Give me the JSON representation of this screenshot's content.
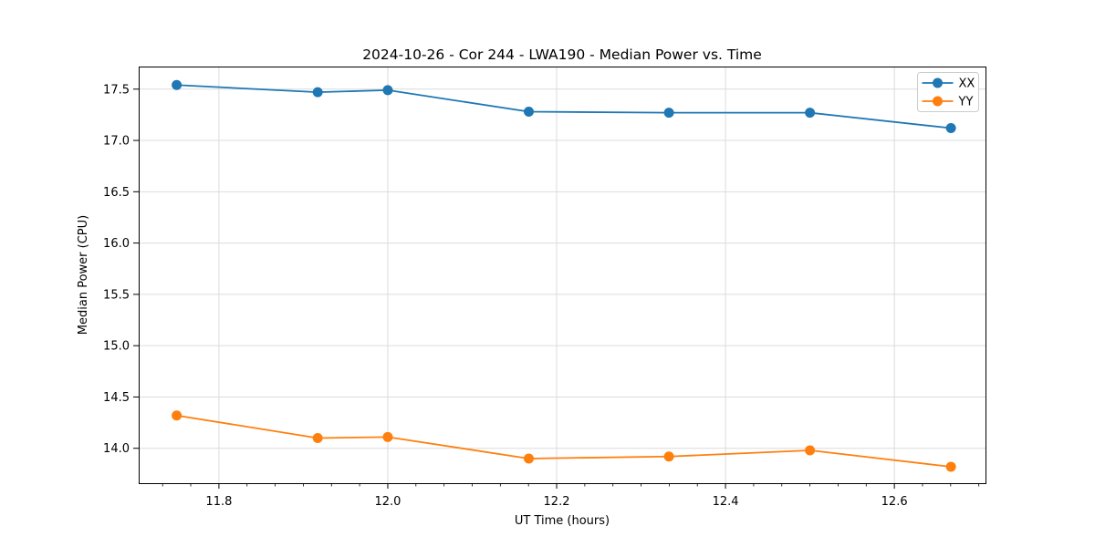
{
  "chart_data": {
    "type": "line",
    "title": "2024-10-26 - Cor 244 - LWA190 - Median Power vs. Time",
    "xlabel": "UT Time (hours)",
    "ylabel": "Median Power (CPU)",
    "x": [
      11.75,
      11.917,
      12.0,
      12.167,
      12.333,
      12.5,
      12.667
    ],
    "series": [
      {
        "name": "XX",
        "color": "#1f77b4",
        "values": [
          17.54,
          17.47,
          17.49,
          17.28,
          17.27,
          17.27,
          17.12
        ]
      },
      {
        "name": "YY",
        "color": "#ff7f0e",
        "values": [
          14.32,
          14.1,
          14.11,
          13.9,
          13.92,
          13.98,
          13.82
        ]
      }
    ],
    "xlim": [
      11.705,
      12.709
    ],
    "ylim": [
      13.66,
      17.72
    ],
    "x_ticks": [
      11.8,
      12.0,
      12.2,
      12.4,
      12.6
    ],
    "x_tick_labels": [
      "11.8",
      "12.0",
      "12.2",
      "12.4",
      "12.6"
    ],
    "x_minor_tick_step": 0.0333333,
    "y_ticks": [
      14.0,
      14.5,
      15.0,
      15.5,
      16.0,
      16.5,
      17.0,
      17.5
    ],
    "y_tick_labels": [
      "14.0",
      "14.5",
      "15.0",
      "15.5",
      "16.0",
      "16.5",
      "17.0",
      "17.5"
    ],
    "grid": true,
    "legend": {
      "location": "upper right",
      "entries": [
        "XX",
        "YY"
      ]
    },
    "marker": "o",
    "marker_radius": 5.5,
    "line_width": 1.8,
    "colors": {
      "grid": "#dcdcdc",
      "spine": "#000000",
      "text": "#000000",
      "background": "#ffffff",
      "legend_border": "#cccccc",
      "legend_background": "#ffffff"
    }
  }
}
